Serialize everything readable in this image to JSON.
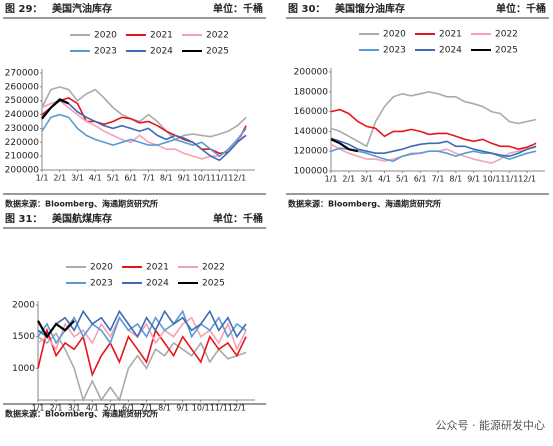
{
  "chart_data": [
    {
      "type": "line",
      "figure": "图 29：",
      "title": "美国汽油库存",
      "unit": "单位：千桶",
      "source": "数据来源：Bloomberg、海通期货研究所",
      "x": [
        0,
        0.5,
        1,
        1.5,
        2,
        2.5,
        3,
        3.5,
        4,
        4.5,
        5,
        5.5,
        6,
        6.5,
        7,
        7.5,
        8,
        8.5,
        9,
        9.5,
        10,
        10.5,
        11,
        11.5
      ],
      "xlim": [
        0,
        12
      ],
      "xticks": [
        {
          "value": 0,
          "label": "1/1"
        },
        {
          "value": 1,
          "label": "2/1"
        },
        {
          "value": 2,
          "label": "3/1"
        },
        {
          "value": 3,
          "label": "4/1"
        },
        {
          "value": 4,
          "label": "5/1"
        },
        {
          "value": 5,
          "label": "6/1"
        },
        {
          "value": 6,
          "label": "7/1"
        },
        {
          "value": 7,
          "label": "8/1"
        },
        {
          "value": 8,
          "label": "9/1"
        },
        {
          "value": 9,
          "label": "10/1"
        },
        {
          "value": 10,
          "label": "11/1"
        },
        {
          "value": 11,
          "label": "12/1"
        }
      ],
      "ylim": [
        200000,
        270000
      ],
      "yticks": [
        200000,
        210000,
        220000,
        230000,
        240000,
        250000,
        260000,
        270000
      ],
      "series": [
        {
          "name": "2020",
          "color": "#aaaaaa",
          "values": [
            245000,
            258000,
            260000,
            258000,
            250000,
            255000,
            258000,
            252000,
            245000,
            240000,
            237000,
            235000,
            240000,
            235000,
            228000,
            222000,
            225000,
            226000,
            225000,
            224000,
            226000,
            228000,
            232000,
            238000
          ]
        },
        {
          "name": "2021",
          "color": "#e8141b",
          "values": [
            240000,
            245000,
            250000,
            252000,
            248000,
            235000,
            235000,
            233000,
            235000,
            238000,
            237000,
            234000,
            235000,
            232000,
            228000,
            225000,
            222000,
            220000,
            215000,
            215000,
            212000,
            213000,
            220000,
            232000
          ]
        },
        {
          "name": "2022",
          "color": "#f4a3b4",
          "values": [
            245000,
            248000,
            250000,
            245000,
            240000,
            235000,
            232000,
            228000,
            225000,
            222000,
            220000,
            225000,
            220000,
            218000,
            215000,
            215000,
            212000,
            210000,
            208000,
            210000,
            210000,
            215000,
            222000,
            225000
          ]
        },
        {
          "name": "2023",
          "color": "#5b9bd5",
          "values": [
            228000,
            238000,
            240000,
            238000,
            230000,
            225000,
            222000,
            220000,
            218000,
            220000,
            222000,
            220000,
            218000,
            218000,
            220000,
            222000,
            220000,
            218000,
            220000,
            215000,
            210000,
            215000,
            222000,
            230000
          ]
        },
        {
          "name": "2024",
          "color": "#3d6bb5",
          "values": [
            238000,
            245000,
            250000,
            248000,
            242000,
            238000,
            235000,
            232000,
            230000,
            232000,
            230000,
            228000,
            230000,
            225000,
            222000,
            225000,
            223000,
            220000,
            215000,
            210000,
            207000,
            213000,
            220000,
            225000
          ]
        },
        {
          "name": "2025",
          "color": "#000000",
          "values": [
            237000,
            245000,
            251000,
            248000,
            null,
            null,
            null,
            null,
            null,
            null,
            null,
            null,
            null,
            null,
            null,
            null,
            null,
            null,
            null,
            null,
            null,
            null,
            null,
            null
          ]
        }
      ]
    },
    {
      "type": "line",
      "figure": "图 30：",
      "title": "美国馏分油库存",
      "unit": "单位：千桶",
      "source": "数据来源：Bloomberg、海通期货研究所",
      "x": [
        0,
        0.5,
        1,
        1.5,
        2,
        2.5,
        3,
        3.5,
        4,
        4.5,
        5,
        5.5,
        6,
        6.5,
        7,
        7.5,
        8,
        8.5,
        9,
        9.5,
        10,
        10.5,
        11,
        11.5
      ],
      "xlim": [
        0,
        12
      ],
      "xticks": [
        {
          "value": 0,
          "label": "1/1"
        },
        {
          "value": 1,
          "label": "2/1"
        },
        {
          "value": 2,
          "label": "3/1"
        },
        {
          "value": 3,
          "label": "4/1"
        },
        {
          "value": 4,
          "label": "5/1"
        },
        {
          "value": 5,
          "label": "6/1"
        },
        {
          "value": 6,
          "label": "7/1"
        },
        {
          "value": 7,
          "label": "8/1"
        },
        {
          "value": 8,
          "label": "9/1"
        },
        {
          "value": 9,
          "label": "10/1"
        },
        {
          "value": 10,
          "label": "11/1"
        },
        {
          "value": 11,
          "label": "12/1"
        }
      ],
      "ylim": [
        100000,
        200000
      ],
      "yticks": [
        100000,
        120000,
        140000,
        160000,
        180000,
        200000
      ],
      "series": [
        {
          "name": "2020",
          "color": "#aaaaaa",
          "values": [
            143000,
            140000,
            135000,
            130000,
            125000,
            150000,
            165000,
            175000,
            178000,
            176000,
            178000,
            180000,
            178000,
            175000,
            175000,
            170000,
            168000,
            165000,
            160000,
            158000,
            150000,
            148000,
            150000,
            152000
          ]
        },
        {
          "name": "2021",
          "color": "#e8141b",
          "values": [
            160000,
            162000,
            158000,
            150000,
            145000,
            143000,
            135000,
            140000,
            140000,
            142000,
            140000,
            137000,
            138000,
            138000,
            135000,
            132000,
            130000,
            132000,
            128000,
            125000,
            125000,
            122000,
            124000,
            128000
          ]
        },
        {
          "name": "2022",
          "color": "#f4a3b4",
          "values": [
            127000,
            122000,
            118000,
            115000,
            112000,
            112000,
            110000,
            112000,
            115000,
            118000,
            118000,
            120000,
            120000,
            122000,
            118000,
            115000,
            112000,
            110000,
            108000,
            112000,
            118000,
            120000,
            122000,
            124000
          ]
        },
        {
          "name": "2023",
          "color": "#5b9bd5",
          "values": [
            120000,
            123000,
            122000,
            120000,
            118000,
            115000,
            112000,
            110000,
            115000,
            117000,
            118000,
            120000,
            120000,
            118000,
            115000,
            118000,
            120000,
            118000,
            118000,
            115000,
            112000,
            115000,
            118000,
            120000
          ]
        },
        {
          "name": "2024",
          "color": "#3d6bb5",
          "values": [
            133000,
            130000,
            127000,
            122000,
            120000,
            118000,
            118000,
            120000,
            122000,
            125000,
            127000,
            128000,
            128000,
            130000,
            125000,
            125000,
            122000,
            120000,
            118000,
            116000,
            115000,
            118000,
            122000,
            125000
          ]
        },
        {
          "name": "2025",
          "color": "#000000",
          "values": [
            132000,
            128000,
            122000,
            120000,
            null,
            null,
            null,
            null,
            null,
            null,
            null,
            null,
            null,
            null,
            null,
            null,
            null,
            null,
            null,
            null,
            null,
            null,
            null,
            null
          ]
        }
      ]
    },
    {
      "type": "line",
      "figure": "图 31：",
      "title": "美国航煤库存",
      "unit": "单位：千桶",
      "source": "数据来源：Bloomberg、海通期货研究所",
      "x": [
        0,
        0.5,
        1,
        1.5,
        2,
        2.5,
        3,
        3.5,
        4,
        4.5,
        5,
        5.5,
        6,
        6.5,
        7,
        7.5,
        8,
        8.5,
        9,
        9.5,
        10,
        10.5,
        11,
        11.5
      ],
      "xlim": [
        0,
        12
      ],
      "xticks": [
        {
          "value": 0,
          "label": "1/1"
        },
        {
          "value": 1,
          "label": "2/1"
        },
        {
          "value": 2,
          "label": "3/1"
        },
        {
          "value": 3,
          "label": "4/1"
        },
        {
          "value": 4,
          "label": "5/1"
        },
        {
          "value": 5,
          "label": "6/1"
        },
        {
          "value": 6,
          "label": "7/1"
        },
        {
          "value": 7,
          "label": "8/1"
        },
        {
          "value": 8,
          "label": "9/1"
        },
        {
          "value": 9,
          "label": "10/1"
        },
        {
          "value": 10,
          "label": "11/1"
        },
        {
          "value": 11,
          "label": "12/1"
        }
      ],
      "ylim": [
        500,
        2000
      ],
      "yticks": [
        1000,
        1500,
        2000
      ],
      "series": [
        {
          "name": "2020",
          "color": "#aaaaaa",
          "values": [
            1500,
            1400,
            1550,
            1300,
            1000,
            500,
            800,
            500,
            700,
            500,
            1000,
            1200,
            1000,
            1300,
            1200,
            1400,
            1300,
            1200,
            1400,
            1100,
            1300,
            1150,
            1200,
            1250
          ]
        },
        {
          "name": "2021",
          "color": "#e8141b",
          "values": [
            1000,
            1600,
            1200,
            1400,
            1300,
            1500,
            900,
            1200,
            1400,
            1100,
            1500,
            1300,
            1100,
            1600,
            1400,
            1200,
            1500,
            1300,
            1100,
            1500,
            1300,
            1400,
            1200,
            1500
          ]
        },
        {
          "name": "2022",
          "color": "#f4a3b4",
          "values": [
            1400,
            1500,
            1300,
            1700,
            1500,
            1600,
            1400,
            1700,
            1500,
            1800,
            1600,
            1500,
            1700,
            1400,
            1600,
            1500,
            1700,
            1800,
            1500,
            1600,
            1400,
            1700,
            1300,
            1600
          ]
        },
        {
          "name": "2023",
          "color": "#5b9bd5",
          "values": [
            1500,
            1700,
            1400,
            1600,
            1800,
            1500,
            1700,
            1600,
            1400,
            1800,
            1600,
            1700,
            1500,
            1800,
            1600,
            1700,
            1900,
            1500,
            1700,
            1600,
            1800,
            1500,
            1700,
            1600
          ]
        },
        {
          "name": "2024",
          "color": "#3d6bb5",
          "values": [
            1600,
            1500,
            1700,
            1800,
            1600,
            1900,
            1700,
            1800,
            1600,
            1900,
            1700,
            1500,
            1800,
            1600,
            1900,
            1700,
            1800,
            1600,
            1700,
            1900,
            1600,
            1800,
            1500,
            1700
          ]
        },
        {
          "name": "2025",
          "color": "#000000",
          "values": [
            1750,
            1500,
            1700,
            1600,
            1750,
            null,
            null,
            null,
            null,
            null,
            null,
            null,
            null,
            null,
            null,
            null,
            null,
            null,
            null,
            null,
            null,
            null,
            null,
            null
          ]
        }
      ]
    }
  ],
  "watermark": "公众号 · 能源研发中心"
}
